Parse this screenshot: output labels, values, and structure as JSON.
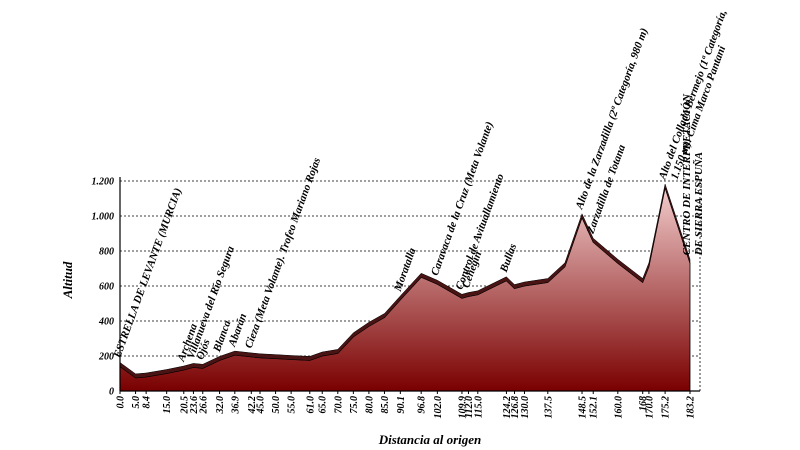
{
  "chart_data": {
    "type": "area",
    "x_label": "Distancia al origen",
    "y_label": "Altitud",
    "x": [
      0.0,
      5.0,
      8.4,
      15.0,
      20.5,
      23.6,
      26.6,
      32.0,
      36.9,
      42.2,
      45.0,
      50.0,
      55.0,
      61.0,
      65.0,
      70.0,
      75.0,
      80.0,
      85.0,
      90.1,
      96.8,
      102.0,
      109.9,
      112.0,
      115.0,
      124.2,
      126.8,
      130.0,
      137.5,
      143,
      148.5,
      152.1,
      160.0,
      168,
      170.0,
      175.2,
      183.2
    ],
    "values": [
      140,
      75,
      80,
      100,
      120,
      135,
      130,
      175,
      205,
      195,
      190,
      185,
      180,
      175,
      200,
      215,
      310,
      370,
      420,
      520,
      650,
      610,
      530,
      540,
      550,
      630,
      585,
      600,
      620,
      710,
      990,
      850,
      730,
      620,
      710,
      1160,
      730
    ],
    "color_top": "#f2cccc",
    "color_bottom": "#7a0000",
    "edge_color": "#4a1414",
    "xlim": [
      0,
      183.2
    ],
    "ylim": [
      0,
      1200
    ],
    "yticks": [
      0,
      200,
      400,
      600,
      800,
      {
        "value": 1000,
        "label": "1.000"
      },
      {
        "value": 1200,
        "label": "1.200"
      }
    ],
    "xticks": [
      {
        "value": 0,
        "label": "0.0"
      },
      {
        "value": 5,
        "label": "5.0"
      },
      8.4,
      {
        "value": 15,
        "label": "15.0"
      },
      20.5,
      23.6,
      26.6,
      {
        "value": 32,
        "label": "32.0"
      },
      36.9,
      42.2,
      {
        "value": 45,
        "label": "45.0"
      },
      {
        "value": 50,
        "label": "50.0"
      },
      {
        "value": 55,
        "label": "55.0"
      },
      {
        "value": 61,
        "label": "61.0"
      },
      {
        "value": 65,
        "label": "65.0"
      },
      {
        "value": 70,
        "label": "70.0"
      },
      {
        "value": 75,
        "label": "75.0"
      },
      {
        "value": 80,
        "label": "80.0"
      },
      {
        "value": 85,
        "label": "85.0"
      },
      90.1,
      96.8,
      {
        "value": 102,
        "label": "102.0"
      },
      109.9,
      {
        "value": 112,
        "label": "112.0"
      },
      {
        "value": 115,
        "label": "115.0"
      },
      124.2,
      126.8,
      {
        "value": 130,
        "label": "130.0"
      },
      137.5,
      148.5,
      152.1,
      {
        "value": 160,
        "label": "160.0"
      },
      168,
      {
        "value": 170,
        "label": "170.0"
      },
      175.2,
      183.2
    ],
    "grid": true,
    "annotations": [
      {
        "x": 0,
        "lines": [
          "ESTRELLA DE LEVANTE (MURCIA)"
        ]
      },
      {
        "x": 20.5,
        "lines": [
          "Archena"
        ]
      },
      {
        "x": 23.6,
        "lines": [
          "Villanueva del Río Segura"
        ]
      },
      {
        "x": 26.6,
        "lines": [
          "Ojós"
        ]
      },
      {
        "x": 32.0,
        "lines": [
          "Blanca"
        ]
      },
      {
        "x": 36.9,
        "lines": [
          "Abarán"
        ]
      },
      {
        "x": 42.2,
        "lines": [
          "Cieza (Meta Volante). Trofeo Mariano Rojas"
        ]
      },
      {
        "x": 90.1,
        "lines": [
          "Moratalla"
        ]
      },
      {
        "x": 102.0,
        "lines": [
          "Caravaca de la Cruz (Meta Volante)"
        ]
      },
      {
        "x": 109.9,
        "lines": [
          "Control de Avituallamiento"
        ]
      },
      {
        "x": 112.0,
        "lines": [
          "Cehegín"
        ]
      },
      {
        "x": 124.2,
        "lines": [
          "Bullas"
        ]
      },
      {
        "x": 148.5,
        "lines": [
          "Alto de la Zarzadilla (2ª Categoría, 980 m)"
        ]
      },
      {
        "x": 152.1,
        "lines": [
          "Zarzadilla de Totana"
        ]
      },
      {
        "x": 175.2,
        "lines": [
          "Alto del Collado Bermejo (1ª Categoría,",
          "1.150 m). Cima Marco Pantani"
        ]
      },
      {
        "x": 183.2,
        "lines": [
          "CENTRO DE INTERPRETACIÓN",
          "DE SIERRA ESPUÑA"
        ]
      }
    ]
  }
}
